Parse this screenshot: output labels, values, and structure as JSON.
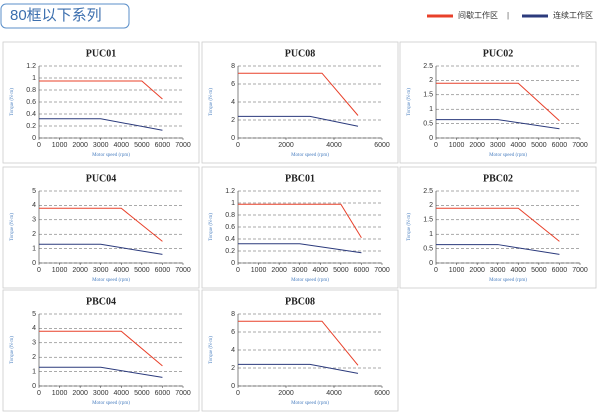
{
  "header": {
    "title": "80框以下系列"
  },
  "legend": [
    {
      "name": "间歇工作区",
      "color": "#e8402a"
    },
    {
      "name": "连续工作区",
      "color": "#2b3a7c"
    }
  ],
  "legend_separator": "|",
  "chart_data": [
    {
      "type": "line",
      "title": "PUC01",
      "xlabel": "Motor speed (rpm)",
      "ylabel": "Torque (N·m)",
      "xlim": [
        0,
        7000
      ],
      "xticks": [
        0,
        1000,
        2000,
        3000,
        4000,
        5000,
        6000,
        7000
      ],
      "ylim": [
        0,
        1.2
      ],
      "yticks": [
        0,
        0.2,
        0.4,
        0.6,
        0.8,
        1,
        1.2
      ],
      "grid": true,
      "series": [
        {
          "x": [
            0,
            5000,
            6000
          ],
          "values": [
            0.95,
            0.95,
            0.65
          ]
        },
        {
          "x": [
            0,
            3000,
            6000
          ],
          "values": [
            0.32,
            0.32,
            0.13
          ]
        }
      ]
    },
    {
      "type": "line",
      "title": "PUC08",
      "xlabel": "Motor speed (rpm)",
      "ylabel": "Torque (N·m)",
      "xlim": [
        0,
        6000
      ],
      "xticks": [
        0,
        2000,
        4000,
        6000
      ],
      "ylim": [
        0,
        8
      ],
      "yticks": [
        0,
        2,
        4,
        6,
        8
      ],
      "grid": true,
      "series": [
        {
          "x": [
            0,
            3500,
            5000
          ],
          "values": [
            7.2,
            7.2,
            2.5
          ]
        },
        {
          "x": [
            0,
            3000,
            5000
          ],
          "values": [
            2.4,
            2.4,
            1.3
          ]
        }
      ]
    },
    {
      "type": "line",
      "title": "PUC02",
      "xlabel": "Motor speed (rpm)",
      "ylabel": "Torque (N·m)",
      "xlim": [
        0,
        7000
      ],
      "xticks": [
        0,
        1000,
        2000,
        3000,
        4000,
        5000,
        6000,
        7000
      ],
      "ylim": [
        0,
        2.5
      ],
      "yticks": [
        0,
        0.5,
        1,
        1.5,
        2,
        2.5
      ],
      "grid": true,
      "series": [
        {
          "x": [
            0,
            4000,
            6000
          ],
          "values": [
            1.9,
            1.9,
            0.6
          ]
        },
        {
          "x": [
            0,
            3000,
            6000
          ],
          "values": [
            0.64,
            0.64,
            0.32
          ]
        }
      ]
    },
    {
      "type": "line",
      "title": "PUC04",
      "xlabel": "Motor speed (rpm)",
      "ylabel": "Torque (N·m)",
      "xlim": [
        0,
        7000
      ],
      "xticks": [
        0,
        1000,
        2000,
        3000,
        4000,
        5000,
        6000,
        7000
      ],
      "ylim": [
        0,
        5
      ],
      "yticks": [
        0,
        1,
        2,
        3,
        4,
        5
      ],
      "grid": true,
      "series": [
        {
          "x": [
            0,
            4000,
            6000
          ],
          "values": [
            3.8,
            3.8,
            1.5
          ]
        },
        {
          "x": [
            0,
            3000,
            6000
          ],
          "values": [
            1.3,
            1.3,
            0.6
          ]
        }
      ]
    },
    {
      "type": "line",
      "title": "PBC01",
      "xlabel": "Motor speed (rpm)",
      "ylabel": "Torque (N·m)",
      "xlim": [
        0,
        7000
      ],
      "xticks": [
        0,
        1000,
        2000,
        3000,
        4000,
        5000,
        6000,
        7000
      ],
      "ylim": [
        0,
        1.2
      ],
      "yticks": [
        0,
        0.2,
        0.4,
        0.6,
        0.8,
        1,
        1.2
      ],
      "grid": true,
      "series": [
        {
          "x": [
            0,
            5000,
            6000
          ],
          "values": [
            0.98,
            0.98,
            0.42
          ]
        },
        {
          "x": [
            0,
            3000,
            6000
          ],
          "values": [
            0.32,
            0.32,
            0.17
          ]
        }
      ]
    },
    {
      "type": "line",
      "title": "PBC02",
      "xlabel": "Motor speed (rpm)",
      "ylabel": "Torque (N·m)",
      "xlim": [
        0,
        7000
      ],
      "xticks": [
        0,
        1000,
        2000,
        3000,
        4000,
        5000,
        6000,
        7000
      ],
      "ylim": [
        0,
        2.5
      ],
      "yticks": [
        0,
        0.5,
        1,
        1.5,
        2,
        2.5
      ],
      "grid": true,
      "series": [
        {
          "x": [
            0,
            4000,
            6000
          ],
          "values": [
            1.9,
            1.9,
            0.75
          ]
        },
        {
          "x": [
            0,
            3000,
            6000
          ],
          "values": [
            0.64,
            0.64,
            0.3
          ]
        }
      ]
    },
    {
      "type": "line",
      "title": "PBC04",
      "xlabel": "Motor speed (rpm)",
      "ylabel": "Torque (N·m)",
      "xlim": [
        0,
        7000
      ],
      "xticks": [
        0,
        1000,
        2000,
        3000,
        4000,
        5000,
        6000,
        7000
      ],
      "ylim": [
        0,
        5
      ],
      "yticks": [
        0,
        1,
        2,
        3,
        4,
        5
      ],
      "grid": true,
      "series": [
        {
          "x": [
            0,
            4000,
            6000
          ],
          "values": [
            3.8,
            3.8,
            1.4
          ]
        },
        {
          "x": [
            0,
            3000,
            6000
          ],
          "values": [
            1.3,
            1.3,
            0.6
          ]
        }
      ]
    },
    {
      "type": "line",
      "title": "PBC08",
      "xlabel": "Motor speed (rpm)",
      "ylabel": "Torque (N·m)",
      "xlim": [
        0,
        6000
      ],
      "xticks": [
        0,
        2000,
        4000,
        6000
      ],
      "ylim": [
        0,
        8
      ],
      "yticks": [
        0,
        2,
        4,
        6,
        8
      ],
      "grid": true,
      "series": [
        {
          "x": [
            0,
            3500,
            5000
          ],
          "values": [
            7.2,
            7.2,
            2.3
          ]
        },
        {
          "x": [
            0,
            3000,
            5000
          ],
          "values": [
            2.4,
            2.4,
            1.4
          ]
        }
      ]
    }
  ]
}
